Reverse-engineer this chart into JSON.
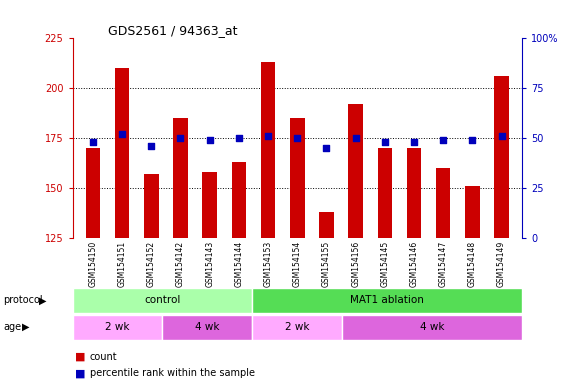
{
  "title": "GDS2561 / 94363_at",
  "samples": [
    "GSM154150",
    "GSM154151",
    "GSM154152",
    "GSM154142",
    "GSM154143",
    "GSM154144",
    "GSM154153",
    "GSM154154",
    "GSM154155",
    "GSM154156",
    "GSM154145",
    "GSM154146",
    "GSM154147",
    "GSM154148",
    "GSM154149"
  ],
  "counts": [
    170,
    210,
    157,
    185,
    158,
    163,
    213,
    185,
    138,
    192,
    170,
    170,
    160,
    151,
    206
  ],
  "percentile_ranks": [
    48,
    52,
    46,
    50,
    49,
    50,
    51,
    50,
    45,
    50,
    48,
    48,
    49,
    49,
    51
  ],
  "ylim_left": [
    125,
    225
  ],
  "ylim_right": [
    0,
    100
  ],
  "yticks_left": [
    125,
    150,
    175,
    200,
    225
  ],
  "yticks_right": [
    0,
    25,
    50,
    75,
    100
  ],
  "bar_color": "#cc0000",
  "dot_color": "#0000bb",
  "bar_width": 0.5,
  "protocol_groups": [
    {
      "label": "control",
      "start": 0,
      "end": 5,
      "color": "#aaffaa"
    },
    {
      "label": "MAT1 ablation",
      "start": 6,
      "end": 14,
      "color": "#55dd55"
    }
  ],
  "age_groups": [
    {
      "label": "2 wk",
      "start": 0,
      "end": 2,
      "color": "#ffaaff"
    },
    {
      "label": "4 wk",
      "start": 3,
      "end": 5,
      "color": "#dd66dd"
    },
    {
      "label": "2 wk",
      "start": 6,
      "end": 8,
      "color": "#ffaaff"
    },
    {
      "label": "4 wk",
      "start": 9,
      "end": 14,
      "color": "#dd66dd"
    }
  ],
  "legend_items": [
    {
      "label": "count",
      "color": "#cc0000"
    },
    {
      "label": "percentile rank within the sample",
      "color": "#0000bb"
    }
  ],
  "left_axis_color": "#cc0000",
  "right_axis_color": "#0000bb",
  "xticklabel_bg": "#cccccc",
  "grid_yticks": [
    150,
    175,
    200
  ]
}
